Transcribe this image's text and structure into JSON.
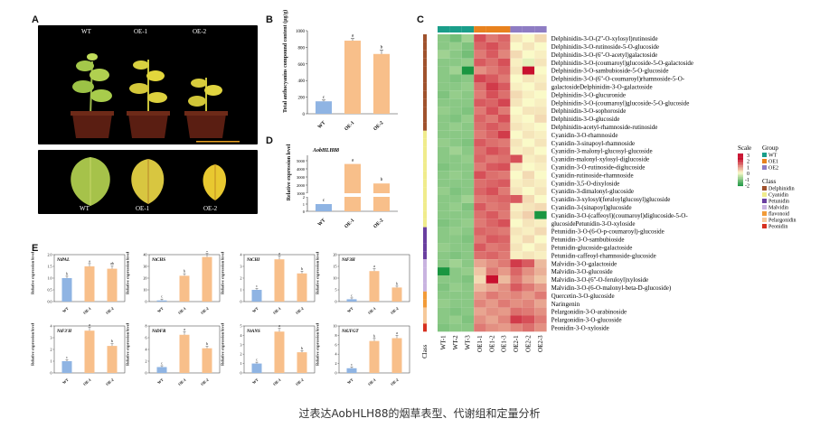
{
  "panels": {
    "A": "A",
    "B": "B",
    "C": "C",
    "D": "D",
    "E": "E"
  },
  "panelA": {
    "plant_labels": [
      "WT",
      "OE-1",
      "OE-2"
    ],
    "leaf_labels": [
      "WT",
      "OE-1",
      "OE-2"
    ]
  },
  "panelB": {
    "ylabel": "Total anthocyanins compound content (μg/g)",
    "categories": [
      "WT",
      "OE-1",
      "OE-2"
    ],
    "values": [
      150,
      880,
      720
    ],
    "errors": [
      15,
      25,
      45
    ],
    "letters": [
      "c",
      "a",
      "b"
    ],
    "ylim": [
      0,
      1000
    ],
    "yticks": [
      "0",
      "200",
      "400",
      "600",
      "800",
      "1000"
    ]
  },
  "panelD": {
    "gene": "AobHLH88",
    "ylabel": "Relative expression level",
    "categories": [
      "WT",
      "OE-1",
      "OE-2"
    ],
    "values": [
      1,
      4600,
      2200
    ],
    "letters": [
      "c",
      "a",
      "b"
    ],
    "yticks": [
      "0",
      "1",
      "2",
      "1000",
      "2000",
      "3000",
      "4000",
      "5000"
    ]
  },
  "panelE": {
    "ylabel": "Relative expression level",
    "categories": [
      "WT",
      "OE-1",
      "OE-2"
    ],
    "genes": [
      {
        "name": "NtPAL",
        "yticks": [
          "0.0",
          "0.5",
          "1.0",
          "1.5",
          "2.0"
        ],
        "ymax": 2.0,
        "values": [
          1.0,
          1.5,
          1.4
        ],
        "letters": [
          "b",
          "a",
          "ab"
        ]
      },
      {
        "name": "NtCHS",
        "yticks": [
          "0",
          "10",
          "20",
          "30",
          "40"
        ],
        "ymax": 40,
        "values": [
          1,
          22,
          38
        ],
        "letters": [
          "c",
          "b",
          "a"
        ]
      },
      {
        "name": "NtCHI",
        "yticks": [
          "0",
          "1",
          "2",
          "3",
          "4"
        ],
        "ymax": 4,
        "values": [
          1,
          3.6,
          2.4
        ],
        "letters": [
          "c",
          "a",
          "b"
        ]
      },
      {
        "name": "NtF3H",
        "yticks": [
          "0",
          "5",
          "10",
          "15",
          "20"
        ],
        "ymax": 20,
        "values": [
          1,
          13,
          6
        ],
        "letters": [
          "c",
          "a",
          "b"
        ]
      },
      {
        "name": "NtF3'H",
        "yticks": [
          "0",
          "1",
          "2",
          "3",
          "4"
        ],
        "ymax": 4,
        "values": [
          1,
          3.6,
          2.3
        ],
        "letters": [
          "c",
          "a",
          "b"
        ]
      },
      {
        "name": "NtDFR",
        "yticks": [
          "0",
          "2",
          "4",
          "6",
          "8"
        ],
        "ymax": 8,
        "values": [
          1,
          6.5,
          4.2
        ],
        "letters": [
          "c",
          "a",
          "b"
        ]
      },
      {
        "name": "NtANS",
        "yticks": [
          "0",
          "1",
          "2",
          "3",
          "4",
          "5"
        ],
        "ymax": 5,
        "values": [
          1,
          4.4,
          2.2
        ],
        "letters": [
          "c",
          "a",
          "b"
        ]
      },
      {
        "name": "NtUFGT",
        "yticks": [
          "0",
          "2",
          "4",
          "6",
          "8",
          "10"
        ],
        "ymax": 10,
        "values": [
          1,
          6.8,
          7.4
        ],
        "letters": [
          "c",
          "b",
          "a"
        ]
      }
    ]
  },
  "panelC": {
    "columns": [
      "WT-1",
      "WT-2",
      "WT-3",
      "OE1-1",
      "OE1-2",
      "OE1-3",
      "OE2-1",
      "OE2-2",
      "OE2-3"
    ],
    "class_axis_label": "Class",
    "rows": [
      {
        "name": "Delphinidin-3-O-(2''-O-xylosyl)rutinoside",
        "cls": "Delphinidin",
        "v": [
          -1,
          -1.2,
          -0.8,
          1.6,
          1.2,
          1.4,
          0.2,
          0,
          0.3
        ]
      },
      {
        "name": "Delphinidin-3-O-rutinoside-5-O-glucoside",
        "cls": "Delphinidin",
        "v": [
          -1,
          -0.9,
          -1.1,
          1.4,
          1.6,
          1.3,
          0,
          0.2,
          0
        ]
      },
      {
        "name": "Delphinidin-3-O-(6''-O-acetyl)galactoside",
        "cls": "Delphinidin",
        "v": [
          -0.8,
          -1,
          -1.2,
          1.2,
          1.5,
          1.1,
          0.3,
          0,
          0.1
        ]
      },
      {
        "name": "Delphinidin-3-O-(coumaroyl)glucoside-5-O-galactoside",
        "cls": "Delphinidin",
        "v": [
          -1,
          -1,
          -0.9,
          1.5,
          1.3,
          1.6,
          0.1,
          -0.2,
          0.2
        ]
      },
      {
        "name": "Delphinidin-3-O-sambubioside-5-O-glucoside",
        "cls": "Delphinidin",
        "v": [
          -1,
          -0.8,
          -2,
          1,
          1.2,
          1.4,
          0.2,
          2.8,
          0
        ]
      },
      {
        "name": "Delphinidin-3-O-(6''-O-coumaroyl)rhamnoside-5-O-",
        "cls": "Delphinidin",
        "v": [
          -1,
          -1.1,
          -1,
          1.7,
          1.5,
          1.2,
          0,
          0.2,
          0.1
        ]
      },
      {
        "name": "galactosideDelphinidin-3-O-galactoside",
        "cls": "Delphinidin",
        "v": [
          -1,
          -1,
          -0.9,
          1.3,
          1.8,
          1.5,
          0.1,
          0,
          0.2
        ]
      },
      {
        "name": "Delphinidin-3-O-glucuronide",
        "cls": "Delphinidin",
        "v": [
          -1.1,
          -0.9,
          -1,
          1.2,
          1.6,
          1.3,
          0.3,
          0.1,
          0
        ]
      },
      {
        "name": "Delphinidin-3-O-(coumaroyl)glucoside-5-O-glucoside",
        "cls": "Delphinidin",
        "v": [
          -1,
          -1,
          -1,
          1.5,
          1.4,
          1.7,
          0.2,
          0,
          0.1
        ]
      },
      {
        "name": "Delphinidin-3-O-sophoroside",
        "cls": "Delphinidin",
        "v": [
          -0.9,
          -1,
          -1.1,
          1.2,
          1.6,
          1.2,
          0,
          0.2,
          0.2
        ]
      },
      {
        "name": "Delphinidin-3-O-glucoside",
        "cls": "Delphinidin",
        "v": [
          -1,
          -1.1,
          -0.9,
          1.4,
          1.2,
          1.6,
          0.1,
          0,
          0.3
        ]
      },
      {
        "name": "Delphinidin-acetyl-rhamnoside-rutinoside",
        "cls": "Delphinidin",
        "v": [
          -1,
          -0.9,
          -1,
          1.3,
          1.5,
          1.3,
          0.2,
          0.1,
          0
        ]
      },
      {
        "name": "Cyanidin-3-O-rhamnoside",
        "cls": "Cyanidin",
        "v": [
          -1,
          -1,
          -1,
          1.2,
          1.4,
          1.8,
          0,
          0.2,
          0.1
        ]
      },
      {
        "name": "Cyanidin-3-sinapoyl-rhamnoside",
        "cls": "Cyanidin",
        "v": [
          -0.9,
          -1,
          -1.1,
          1.5,
          1.3,
          1.2,
          0.2,
          0,
          0.2
        ]
      },
      {
        "name": "Cyanidin-3-malonyl-glucosyl-glucoside",
        "cls": "Cyanidin",
        "v": [
          -1,
          -0.8,
          -1,
          1.3,
          1.6,
          1.4,
          0.1,
          0.2,
          0
        ]
      },
      {
        "name": "Cyanidin-malonyl-xylosyl-diglucoside",
        "cls": "Cyanidin",
        "v": [
          -1,
          -1,
          -0.9,
          1.4,
          1.2,
          1.3,
          1.6,
          0.1,
          0.2
        ]
      },
      {
        "name": "Cyanidin-3-O-rutinoside-diglucoside",
        "cls": "Cyanidin",
        "v": [
          -1.1,
          -1,
          -1,
          1.2,
          1.5,
          1.6,
          0.2,
          0,
          0.1
        ]
      },
      {
        "name": "Cyanidin-rutinoside-rhamnoside",
        "cls": "Cyanidin",
        "v": [
          -1,
          -0.9,
          -1,
          1.6,
          1.3,
          1.2,
          0,
          0.3,
          0
        ]
      },
      {
        "name": "Cyanidin-3,5-O-dixyloside",
        "cls": "Cyanidin",
        "v": [
          -1,
          -1,
          -1,
          1.3,
          1.4,
          1.5,
          0.1,
          0.2,
          0.1
        ]
      },
      {
        "name": "Cyanidin-3-dimalonyl-glucoside",
        "cls": "Cyanidin",
        "v": [
          -0.9,
          -1.1,
          -1,
          1.4,
          1.6,
          1.2,
          0.2,
          0,
          0.2
        ]
      },
      {
        "name": "Cyanidin-3-xylosyl(feruloylglucosyl)glucoside",
        "cls": "Cyanidin",
        "v": [
          -1,
          -1,
          -0.8,
          1.2,
          1.3,
          1.4,
          1.5,
          0.3,
          0
        ]
      },
      {
        "name": "Cyanidin-3-(sinapoyl)glucoside",
        "cls": "Cyanidin",
        "v": [
          -1,
          -0.9,
          -1.1,
          1.5,
          1.2,
          1.3,
          0.1,
          0.2,
          0.3
        ]
      },
      {
        "name": "Cyanidin-3-O-(caffeoyl)(coumaroyl)diglucoside-5-O-",
        "cls": "Cyanidin",
        "v": [
          -1,
          -1,
          -1,
          1.3,
          1.5,
          1.2,
          0.2,
          0.4,
          -2
        ]
      },
      {
        "name": "glucosidePetunidin-3-O-xyloside",
        "cls": "Cyanidin",
        "v": [
          -1.1,
          -1,
          -0.9,
          1.2,
          1.4,
          1.6,
          0,
          0.2,
          0.1
        ]
      },
      {
        "name": "Petunidin-3-O-(6-O-p-coumaroyl)-glucoside",
        "cls": "Petunidin",
        "v": [
          -1,
          -0.9,
          -1,
          1.4,
          1.3,
          1.2,
          0.2,
          0.1,
          0.3
        ]
      },
      {
        "name": "Petunidin-3-O-sambubioside",
        "cls": "Petunidin",
        "v": [
          -1,
          -1,
          -1.1,
          1.2,
          1.5,
          1.4,
          0.1,
          0.3,
          0
        ]
      },
      {
        "name": "Petunidin-glucoside-galactoside",
        "cls": "Petunidin",
        "v": [
          -0.9,
          -1,
          -1,
          1.5,
          1.2,
          1.3,
          0.2,
          0,
          0.2
        ]
      },
      {
        "name": "Petunidin-caffeoyl-rhamnoside-glucoside",
        "cls": "Petunidin",
        "v": [
          -1,
          -1.1,
          -1,
          1.3,
          1.4,
          1.2,
          0.1,
          0.2,
          0.1
        ]
      },
      {
        "name": "Malvidin-3-O-galactoside",
        "cls": "Malvidin",
        "v": [
          -1,
          -0.8,
          -1,
          0.8,
          1,
          1.2,
          1.8,
          1.5,
          0.6
        ]
      },
      {
        "name": "Malvidin-3-O-glucoside",
        "cls": "Malvidin",
        "v": [
          -2,
          -1,
          -0.9,
          0.5,
          1.2,
          0.9,
          1.4,
          1.0,
          0.7
        ]
      },
      {
        "name": "Malvidin-3-O-(6''-O-feruloyl)xyloside",
        "cls": "Malvidin",
        "v": [
          -1,
          -1,
          -1.1,
          0.3,
          2.8,
          0.6,
          1.2,
          0.8,
          0.5
        ]
      },
      {
        "name": "Malvidin-3-O-(6-O-malonyl-beta-D-glucoside)",
        "cls": "Malvidin",
        "v": [
          -1.1,
          -0.9,
          -1,
          0.6,
          0.8,
          1.0,
          1.5,
          1.2,
          0.9
        ]
      },
      {
        "name": "Quercetin-3-O-glucoside",
        "cls": "flavonoid",
        "v": [
          -1,
          -1,
          -1,
          0.9,
          1.2,
          1.0,
          1.1,
          0.9,
          1.2
        ]
      },
      {
        "name": "Naringenin",
        "cls": "flavonoid",
        "v": [
          -0.9,
          -1,
          -1,
          1.1,
          0.9,
          1.2,
          1.0,
          1.1,
          0.8
        ]
      },
      {
        "name": "Pelargonidin-3-O-arabinoside",
        "cls": "Pelargonidin",
        "v": [
          -1,
          -1.1,
          -1,
          0.8,
          1.0,
          0.9,
          1.3,
          1.2,
          1.0
        ]
      },
      {
        "name": "Pelargonidin-3-O-glucoside",
        "cls": "Pelargonidin",
        "v": [
          -1,
          -0.9,
          -1.1,
          1.0,
          0.8,
          1.1,
          1.8,
          1.6,
          1.2
        ]
      },
      {
        "name": "Peonidin-3-O-xyloside",
        "cls": "Peonidin",
        "v": [
          -1.1,
          -1,
          -1,
          1.2,
          1.0,
          0.9,
          1.1,
          1.3,
          1.0
        ]
      }
    ],
    "legend": {
      "scale_title": "Scale",
      "group_title": "Group",
      "scale_ticks": [
        "3",
        "2",
        "1",
        "0",
        "-1",
        "-2"
      ],
      "groups": [
        {
          "name": "WT",
          "color": "#1a9e8a"
        },
        {
          "name": "OE1",
          "color": "#e8821e"
        },
        {
          "name": "OE2",
          "color": "#8e7cc3"
        }
      ],
      "class_title": "Class",
      "classes": [
        {
          "name": "Delphinidin",
          "color": "#a0522d"
        },
        {
          "name": "Cyanidin",
          "color": "#f0ec8c"
        },
        {
          "name": "Petunidin",
          "color": "#6a3fa0"
        },
        {
          "name": "Malvidin",
          "color": "#c9b3e0"
        },
        {
          "name": "flavonoid",
          "color": "#f29b38"
        },
        {
          "name": "Pelargonidin",
          "color": "#f6c99a"
        },
        {
          "name": "Peonidin",
          "color": "#d7301f"
        }
      ]
    }
  },
  "caption": "过表达AobHLH88的烟草表型、代谢组和定量分析",
  "colors": {
    "bar_wt": "#8fb4e3",
    "bar_oe": "#f8bf8a",
    "heat_low": "#1a9641",
    "heat_mid": "#fafac8",
    "heat_high": "#c8102e"
  }
}
